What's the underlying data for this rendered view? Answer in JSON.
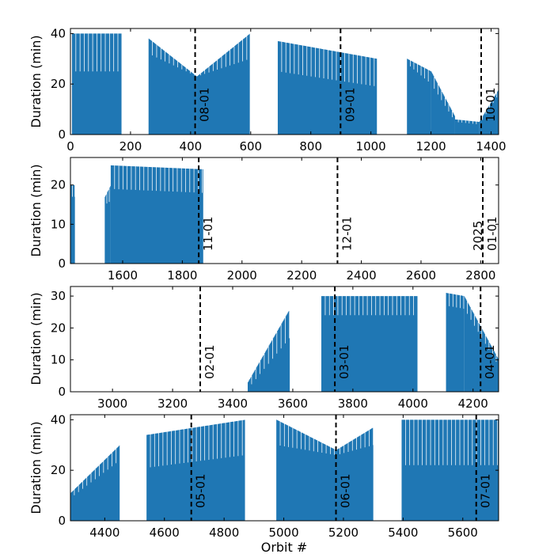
{
  "chart_data": {
    "type": "bar",
    "xlabel": "Orbit #",
    "ylabel": "Duration (min)",
    "bar_color": "#1f77b4",
    "line_color": "#000000",
    "panels": [
      {
        "xlim": [
          0,
          1425
        ],
        "ylim": [
          0,
          42
        ],
        "xticks": [
          0,
          200,
          400,
          600,
          800,
          1000,
          1200,
          1400
        ],
        "yticks": [
          0,
          20,
          40
        ],
        "segments": [
          {
            "x": [
              5,
              170
            ],
            "hi": [
              40,
              40
            ],
            "lo": [
              25,
              25
            ],
            "period": 14
          },
          {
            "x": [
              260,
              420
            ],
            "hi": [
              38,
              23
            ],
            "lo": [
              32,
              23
            ],
            "period": 14
          },
          {
            "x": [
              420,
              597
            ],
            "hi": [
              23,
              40
            ],
            "lo": [
              23,
              30
            ],
            "period": 14
          },
          {
            "x": [
              690,
              1020
            ],
            "hi": [
              37,
              30
            ],
            "lo": [
              25,
              19
            ],
            "period": 14
          },
          {
            "x": [
              1120,
              1200
            ],
            "hi": [
              30,
              25
            ],
            "lo": [
              28,
              20
            ],
            "period": 12
          },
          {
            "x": [
              1200,
              1280
            ],
            "hi": [
              25,
              7
            ],
            "lo": [
              20,
              5
            ],
            "period": 12
          },
          {
            "x": [
              1280,
              1360
            ],
            "hi": [
              6,
              5
            ],
            "lo": [
              5,
              4
            ],
            "period": 12
          },
          {
            "x": [
              1360,
              1425
            ],
            "hi": [
              5,
              18
            ],
            "lo": [
              4,
              16
            ],
            "period": 12
          }
        ],
        "vlines": [
          {
            "x": 415,
            "label": "08-01"
          },
          {
            "x": 899,
            "label": "09-01"
          },
          {
            "x": 1367,
            "label": "10-01"
          }
        ]
      },
      {
        "xlim": [
          1425,
          2860
        ],
        "ylim": [
          0,
          27
        ],
        "xticks": [
          1600,
          1800,
          2000,
          2200,
          2400,
          2600,
          2800
        ],
        "yticks": [
          0,
          10,
          20
        ],
        "segments": [
          {
            "x": [
              1425,
              1440
            ],
            "hi": [
              20,
              20
            ],
            "lo": [
              17,
              17
            ],
            "period": 8
          },
          {
            "x": [
              1540,
              1560
            ],
            "hi": [
              17,
              20
            ],
            "lo": [
              15,
              16
            ],
            "period": 8
          },
          {
            "x": [
              1560,
              1870
            ],
            "hi": [
              25,
              24
            ],
            "lo": [
              19,
              18
            ],
            "period": 14
          }
        ],
        "vlines": [
          {
            "x": 1855,
            "label": "11-01"
          },
          {
            "x": 2320,
            "label": "12-01"
          },
          {
            "x": 2807,
            "label": "2025 01-01"
          }
        ]
      },
      {
        "xlim": [
          2860,
          4285
        ],
        "ylim": [
          0,
          33
        ],
        "xticks": [
          3000,
          3200,
          3400,
          3600,
          3800,
          4000,
          4200
        ],
        "yticks": [
          0,
          10,
          20,
          30
        ],
        "segments": [
          {
            "x": [
              3450,
              3590
            ],
            "hi": [
              3,
              26
            ],
            "lo": [
              1,
              17
            ],
            "period": 14
          },
          {
            "x": [
              3695,
              4015
            ],
            "hi": [
              30,
              30
            ],
            "lo": [
              24,
              24
            ],
            "period": 14
          },
          {
            "x": [
              4110,
              4170
            ],
            "hi": [
              31,
              30
            ],
            "lo": [
              27,
              26
            ],
            "period": 12
          },
          {
            "x": [
              4170,
              4285
            ],
            "hi": [
              30,
              10
            ],
            "lo": [
              26,
              8
            ],
            "period": 12
          }
        ],
        "vlines": [
          {
            "x": 3292,
            "label": "02-01"
          },
          {
            "x": 3740,
            "label": "03-01"
          },
          {
            "x": 4225,
            "label": "04-01"
          }
        ]
      },
      {
        "xlim": [
          4285,
          5720
        ],
        "ylim": [
          0,
          42
        ],
        "xticks": [
          4400,
          4600,
          4800,
          5000,
          5200,
          5400,
          5600
        ],
        "yticks": [
          0,
          20,
          40
        ],
        "segments": [
          {
            "x": [
              4285,
              4450
            ],
            "hi": [
              11,
              30
            ],
            "lo": [
              9,
              24
            ],
            "period": 14
          },
          {
            "x": [
              4540,
              4870
            ],
            "hi": [
              34,
              40
            ],
            "lo": [
              21,
              26
            ],
            "period": 14
          },
          {
            "x": [
              4975,
              5175
            ],
            "hi": [
              40,
              28
            ],
            "lo": [
              30,
              26
            ],
            "period": 14
          },
          {
            "x": [
              5175,
              5300
            ],
            "hi": [
              28,
              37
            ],
            "lo": [
              26,
              30
            ],
            "period": 14
          },
          {
            "x": [
              5395,
              5720
            ],
            "hi": [
              40,
              40
            ],
            "lo": [
              22,
              22
            ],
            "period": 14
          }
        ],
        "vlines": [
          {
            "x": 4690,
            "label": "05-01"
          },
          {
            "x": 5175,
            "label": "06-01"
          },
          {
            "x": 5645,
            "label": "07-01"
          }
        ]
      }
    ]
  }
}
